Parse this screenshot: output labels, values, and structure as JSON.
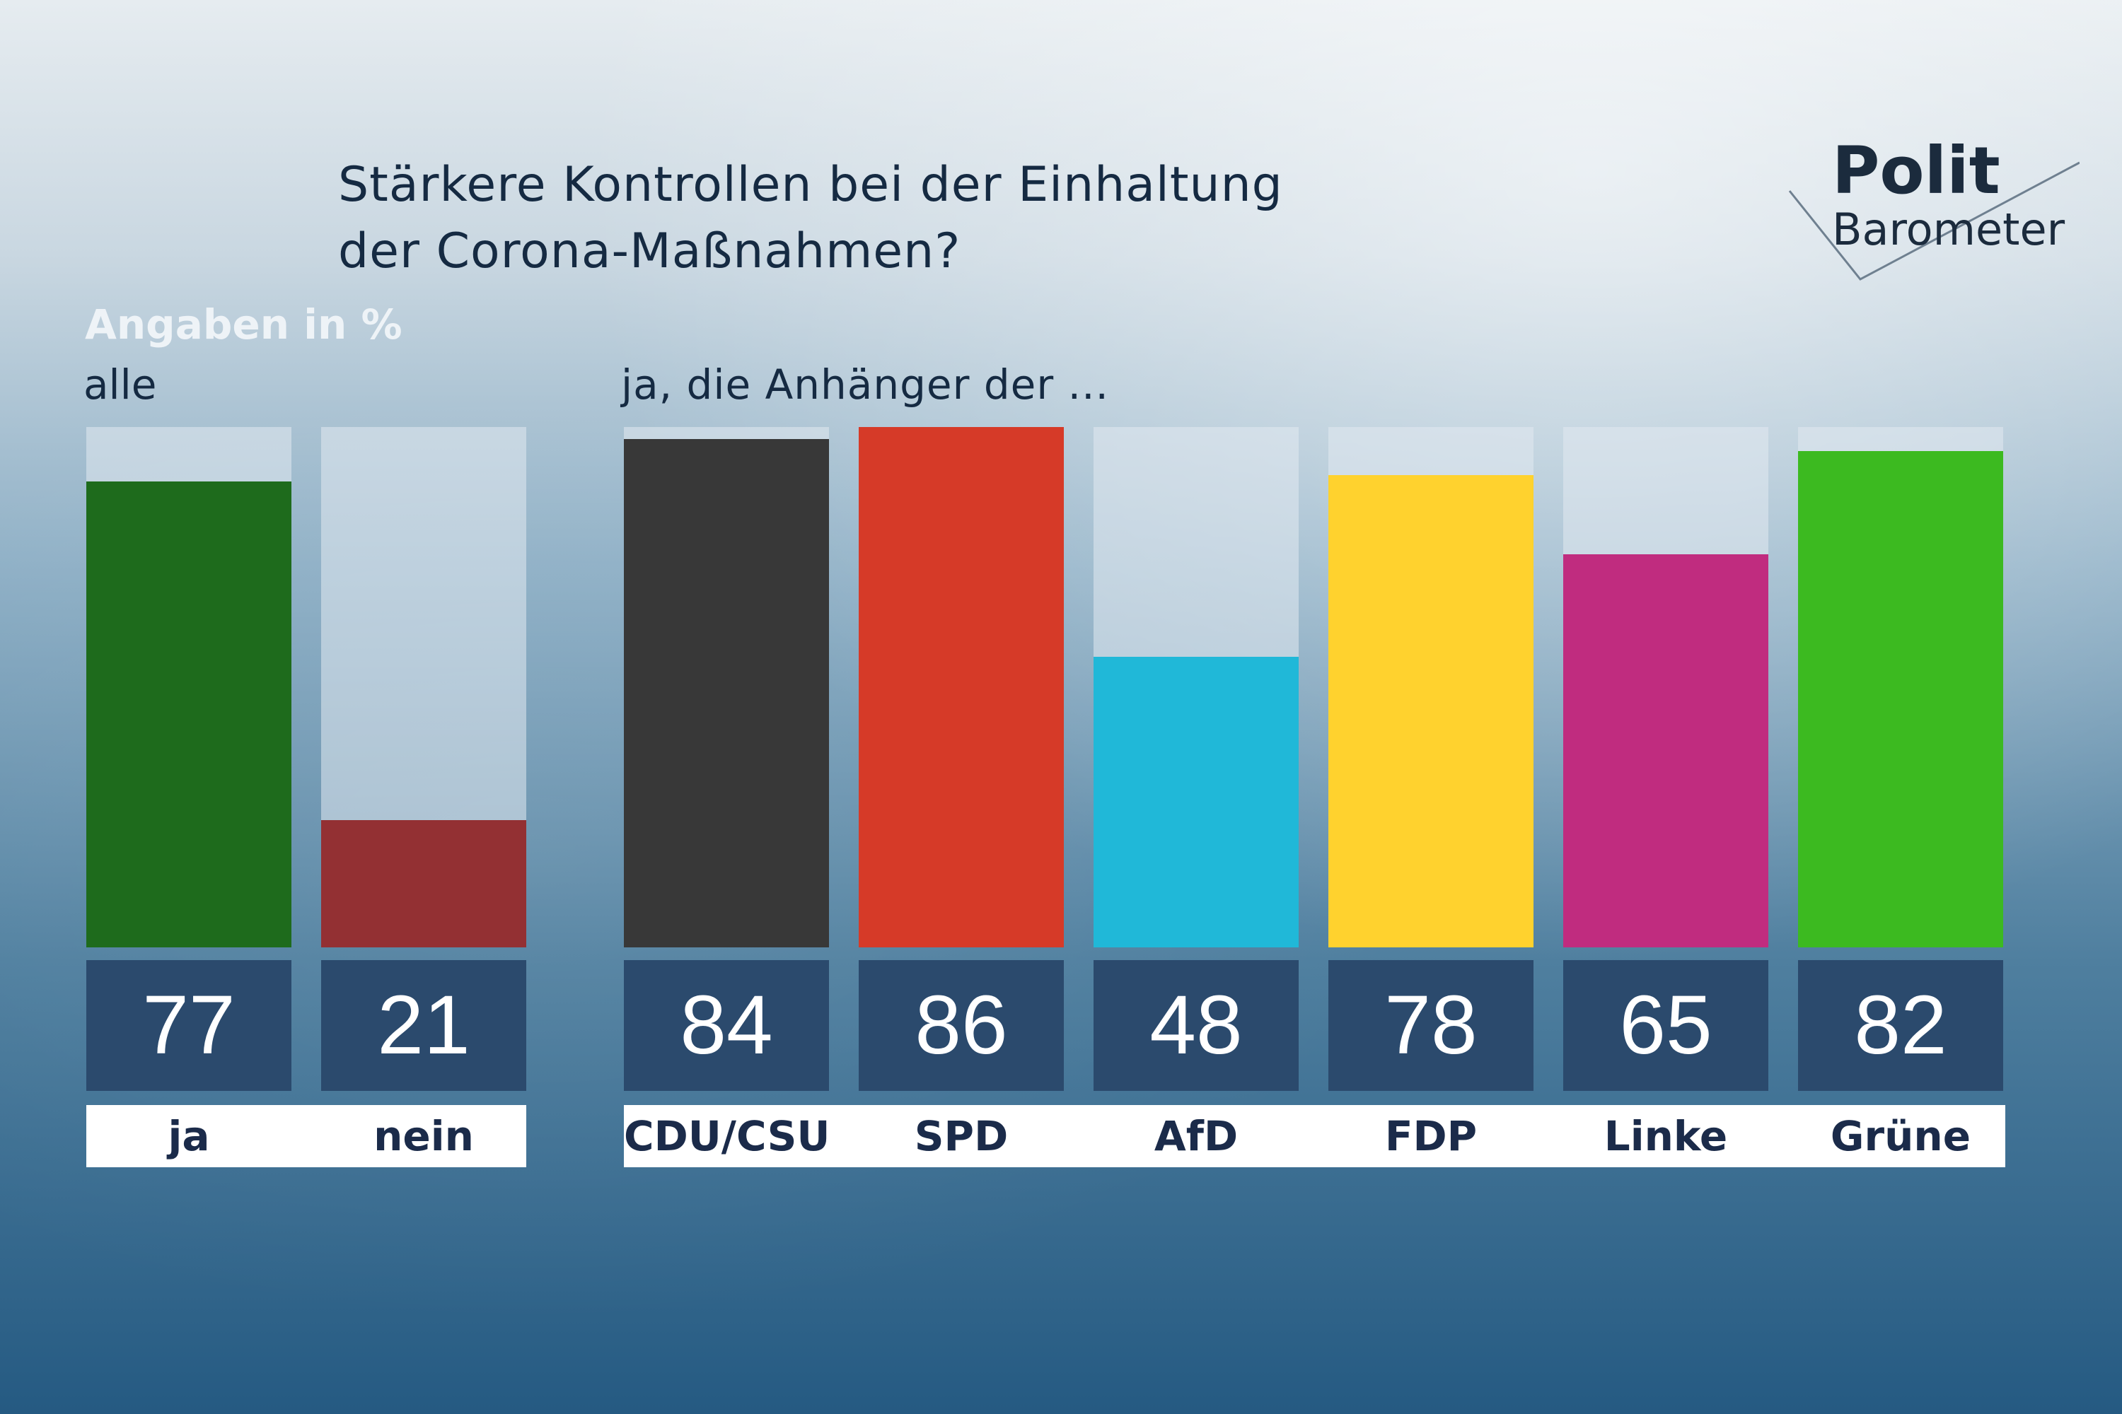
{
  "title_line1": "Stärkere Kontrollen bei der Einhaltung",
  "title_line2": "der Corona-Maßnahmen?",
  "logo": {
    "line1": "Polit",
    "line2": "Barometer"
  },
  "unit_label": "Angaben in %",
  "group_all_label": "alle",
  "group_parties_label": "ja, die Anhänger der ...",
  "colors": {
    "ja": "#1e6b1c",
    "nein": "#933033",
    "CDU/CSU": "#383838",
    "SPD": "#d63a28",
    "AfD": "#20b8d8",
    "FDP": "#ffd22e",
    "Linke": "#c02c7f",
    "Grüne": "#3cba20"
  },
  "chart_data": [
    {
      "type": "bar",
      "categories": [
        "ja",
        "nein"
      ],
      "values": [
        77,
        21
      ],
      "ylim": [
        0,
        86
      ]
    },
    {
      "type": "bar",
      "categories": [
        "CDU/CSU",
        "SPD",
        "AfD",
        "FDP",
        "Linke",
        "Grüne"
      ],
      "values": [
        84,
        86,
        48,
        78,
        65,
        82
      ],
      "ylim": [
        0,
        86
      ]
    }
  ]
}
